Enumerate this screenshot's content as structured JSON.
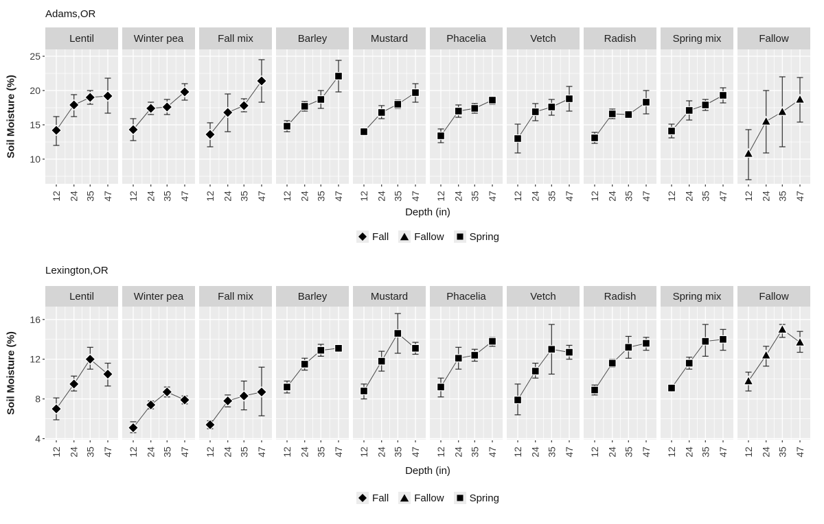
{
  "colors": {
    "panel_bg": "#ebebeb",
    "strip_bg": "#d5d5d5",
    "grid": "#ffffff",
    "marker": "#000000",
    "marker_halo": "#ffffff",
    "error_bar": "#2b2b2b",
    "line": "#4a4a4a",
    "text": "#111111",
    "tick_text": "#3d3d3d",
    "legend_key_bg": "#ececec"
  },
  "legend": {
    "items": [
      {
        "label": "Fall",
        "marker": "diamond"
      },
      {
        "label": "Fallow",
        "marker": "triangle"
      },
      {
        "label": "Spring",
        "marker": "square"
      }
    ]
  },
  "chart_data": [
    {
      "type": "line",
      "title": "Adams,OR",
      "xlabel": "Depth (in)",
      "ylabel": "Soil Moisture (%)",
      "x": [
        12,
        24,
        35,
        47
      ],
      "xminor": [
        18,
        29.5,
        41
      ],
      "yticks": [
        10,
        15,
        20,
        25
      ],
      "yminor": [
        7.5,
        12.5,
        17.5,
        22.5
      ],
      "ylim": [
        6.4,
        26.0
      ],
      "grid": true,
      "legend_position": "bottom",
      "facets": [
        {
          "label": "Lentil",
          "season": "Fall",
          "marker": "diamond",
          "values": [
            14.2,
            17.9,
            19.0,
            19.2
          ],
          "err_low": [
            12.0,
            16.2,
            18.0,
            16.7
          ],
          "err_high": [
            16.2,
            19.4,
            20.0,
            21.8
          ]
        },
        {
          "label": "Winter pea",
          "season": "Fall",
          "marker": "diamond",
          "values": [
            14.3,
            17.4,
            17.6,
            19.8
          ],
          "err_low": [
            12.7,
            16.5,
            16.5,
            18.6
          ],
          "err_high": [
            15.9,
            18.3,
            18.7,
            21.0
          ]
        },
        {
          "label": "Fall mix",
          "season": "Fall",
          "marker": "diamond",
          "values": [
            13.6,
            16.8,
            17.8,
            21.4
          ],
          "err_low": [
            11.8,
            14.0,
            16.9,
            18.3
          ],
          "err_high": [
            15.3,
            19.5,
            18.8,
            24.5
          ]
        },
        {
          "label": "Barley",
          "season": "Spring",
          "marker": "square",
          "values": [
            14.8,
            17.7,
            18.7,
            22.1
          ],
          "err_low": [
            14.0,
            17.0,
            17.4,
            19.8
          ],
          "err_high": [
            15.6,
            18.4,
            20.0,
            24.4
          ]
        },
        {
          "label": "Mustard",
          "season": "Spring",
          "marker": "square",
          "values": [
            14.0,
            16.8,
            18.0,
            19.7
          ],
          "err_low": [
            13.6,
            15.9,
            17.4,
            18.3
          ],
          "err_high": [
            14.4,
            17.8,
            18.6,
            21.0
          ]
        },
        {
          "label": "Phacelia",
          "season": "Spring",
          "marker": "square",
          "values": [
            13.4,
            17.0,
            17.4,
            18.6
          ],
          "err_low": [
            12.4,
            16.1,
            16.7,
            18.0
          ],
          "err_high": [
            14.4,
            17.9,
            18.1,
            19.1
          ]
        },
        {
          "label": "Vetch",
          "season": "Spring",
          "marker": "square",
          "values": [
            13.0,
            16.9,
            17.6,
            18.8
          ],
          "err_low": [
            10.9,
            15.6,
            16.4,
            17.0
          ],
          "err_high": [
            15.1,
            18.1,
            18.7,
            20.6
          ]
        },
        {
          "label": "Radish",
          "season": "Spring",
          "marker": "square",
          "values": [
            13.1,
            16.6,
            16.5,
            18.3
          ],
          "err_low": [
            12.3,
            15.9,
            16.1,
            16.6
          ],
          "err_high": [
            13.9,
            17.3,
            16.9,
            20.0
          ]
        },
        {
          "label": "Spring mix",
          "season": "Spring",
          "marker": "square",
          "values": [
            14.1,
            17.1,
            17.9,
            19.3
          ],
          "err_low": [
            13.1,
            15.7,
            17.1,
            18.2
          ],
          "err_high": [
            15.1,
            18.5,
            18.7,
            20.4
          ]
        },
        {
          "label": "Fallow",
          "season": "Fallow",
          "marker": "triangle",
          "values": [
            10.8,
            15.5,
            16.9,
            18.7
          ],
          "err_low": [
            7.0,
            10.9,
            11.8,
            15.4
          ],
          "err_high": [
            14.3,
            20.0,
            22.0,
            21.9
          ]
        }
      ]
    },
    {
      "type": "line",
      "title": "Lexington,OR",
      "xlabel": "Depth (in)",
      "ylabel": "Soil Moisture (%)",
      "x": [
        12,
        24,
        35,
        47
      ],
      "xminor": [
        18,
        29.5,
        41
      ],
      "yticks": [
        4,
        8,
        12,
        16
      ],
      "yminor": [
        6,
        10,
        14
      ],
      "ylim": [
        3.9,
        17.3
      ],
      "grid": true,
      "legend_position": "bottom",
      "facets": [
        {
          "label": "Lentil",
          "season": "Fall",
          "marker": "diamond",
          "values": [
            7.0,
            9.5,
            12.0,
            10.5
          ],
          "err_low": [
            5.9,
            8.8,
            11.0,
            9.3
          ],
          "err_high": [
            8.1,
            10.3,
            13.2,
            11.6
          ]
        },
        {
          "label": "Winter pea",
          "season": "Fall",
          "marker": "diamond",
          "values": [
            5.1,
            7.4,
            8.7,
            7.9
          ],
          "err_low": [
            4.6,
            7.0,
            8.2,
            7.5
          ],
          "err_high": [
            5.7,
            7.8,
            9.2,
            8.3
          ]
        },
        {
          "label": "Fall mix",
          "season": "Fall",
          "marker": "diamond",
          "values": [
            5.4,
            7.8,
            8.3,
            8.7
          ],
          "err_low": [
            5.0,
            7.2,
            6.9,
            6.3
          ],
          "err_high": [
            5.8,
            8.4,
            9.8,
            11.2
          ]
        },
        {
          "label": "Barley",
          "season": "Spring",
          "marker": "square",
          "values": [
            9.2,
            11.5,
            12.9,
            13.1
          ],
          "err_low": [
            8.6,
            10.9,
            12.3,
            12.8
          ],
          "err_high": [
            9.8,
            12.1,
            13.5,
            13.4
          ]
        },
        {
          "label": "Mustard",
          "season": "Spring",
          "marker": "square",
          "values": [
            8.8,
            11.8,
            14.6,
            13.1
          ],
          "err_low": [
            8.0,
            10.8,
            12.6,
            12.5
          ],
          "err_high": [
            9.5,
            12.8,
            16.6,
            13.7
          ]
        },
        {
          "label": "Phacelia",
          "season": "Spring",
          "marker": "square",
          "values": [
            9.2,
            12.1,
            12.4,
            13.8
          ],
          "err_low": [
            8.2,
            11.0,
            11.8,
            13.3
          ],
          "err_high": [
            10.1,
            13.2,
            13.0,
            14.2
          ]
        },
        {
          "label": "Vetch",
          "season": "Spring",
          "marker": "square",
          "values": [
            7.9,
            10.8,
            13.0,
            12.7
          ],
          "err_low": [
            6.4,
            10.1,
            10.5,
            12.0
          ],
          "err_high": [
            9.5,
            11.6,
            15.5,
            13.4
          ]
        },
        {
          "label": "Radish",
          "season": "Spring",
          "marker": "square",
          "values": [
            8.9,
            11.6,
            13.2,
            13.6
          ],
          "err_low": [
            8.4,
            11.2,
            12.1,
            12.9
          ],
          "err_high": [
            9.4,
            12.0,
            14.3,
            14.2
          ]
        },
        {
          "label": "Spring mix",
          "season": "Spring",
          "marker": "square",
          "values": [
            9.1,
            11.6,
            13.8,
            14.0
          ],
          "err_low": [
            8.9,
            11.0,
            12.3,
            12.9
          ],
          "err_high": [
            9.3,
            12.2,
            15.5,
            15.0
          ]
        },
        {
          "label": "Fallow",
          "season": "Fallow",
          "marker": "triangle",
          "values": [
            9.8,
            12.4,
            15.0,
            13.7
          ],
          "err_low": [
            8.8,
            11.3,
            14.2,
            12.7
          ],
          "err_high": [
            10.7,
            13.3,
            15.5,
            14.8
          ]
        }
      ]
    }
  ]
}
